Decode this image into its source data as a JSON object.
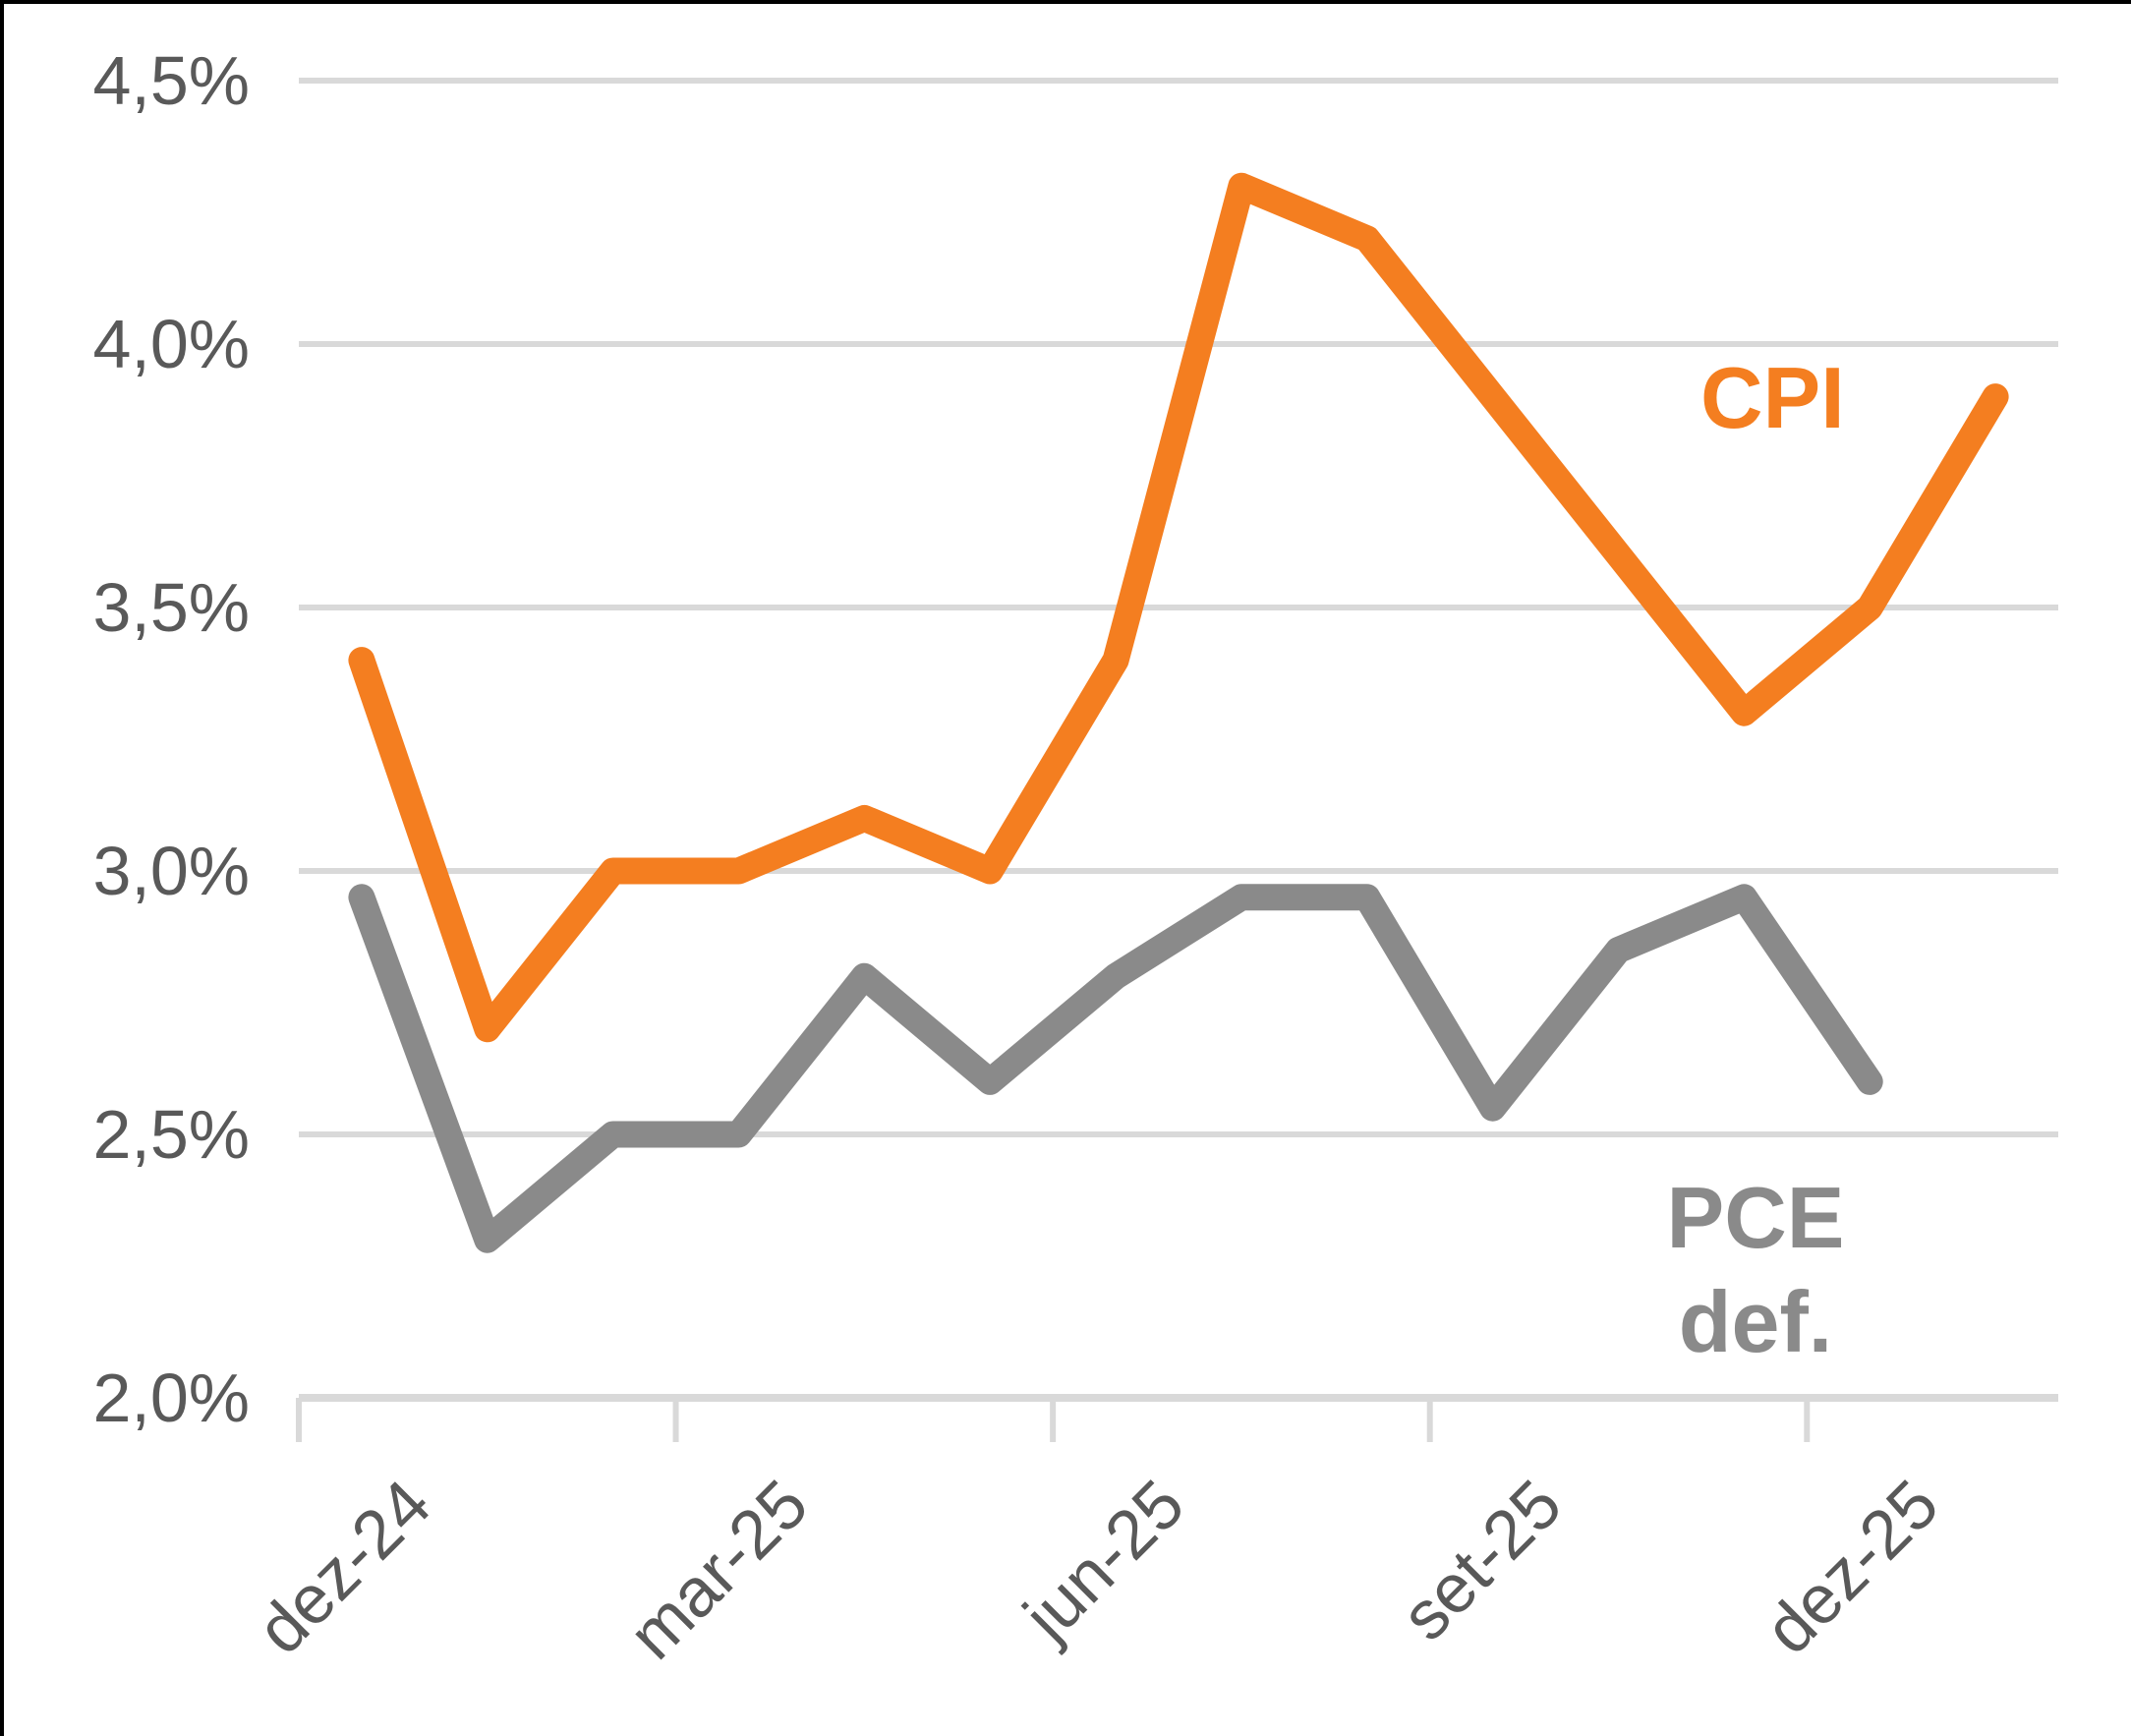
{
  "chart_data": {
    "type": "line",
    "title": "",
    "locale_note": "decimal comma (pt)",
    "categories": [
      "dez-24",
      "jan-25",
      "fev-25",
      "mar-25",
      "abr-25",
      "mai-25",
      "jun-25",
      "jul-25",
      "ago-25",
      "set-25",
      "out-25",
      "nov-25",
      "dez-25",
      "jan-26"
    ],
    "series": [
      {
        "name": "CPI",
        "color": "#F47E20",
        "values": [
          3.4,
          2.7,
          3.0,
          3.0,
          3.1,
          3.0,
          3.4,
          4.3,
          4.2,
          3.9,
          3.6,
          3.3,
          3.5,
          3.9
        ]
      },
      {
        "name": "PCE def.",
        "color": "#8A8A8A",
        "values": [
          2.95,
          2.3,
          2.5,
          2.5,
          2.8,
          2.6,
          2.8,
          2.95,
          2.95,
          2.55,
          2.85,
          2.95,
          2.6,
          null
        ]
      }
    ],
    "y_axis": {
      "min": 2.0,
      "max": 4.5,
      "step": 0.5,
      "tick_values": [
        4.5,
        4.0,
        3.5,
        3.0,
        2.5,
        2.0
      ],
      "tick_labels": [
        "4,5%",
        "4,0%",
        "3,5%",
        "3,0%",
        "2,5%",
        "2,0%"
      ],
      "grid": true
    },
    "x_axis": {
      "tick_label_indexes": [
        0,
        3,
        6,
        9,
        12
      ],
      "tick_labels": [
        "dez-24",
        "mar-25",
        "jun-25",
        "set-25",
        "dez-25"
      ],
      "label_rotation_deg": -45
    },
    "legend": {
      "position": "inline-annotations",
      "cpi_annotation": "CPI",
      "pce_annotation": "PCE def."
    },
    "style": {
      "background": "#FFFFFF",
      "grid_color": "#D9D9D9",
      "axis_color": "#D9D9D9",
      "text_color": "#595959",
      "cpi_color": "#F47E20",
      "pce_color": "#8A8A8A",
      "line_width": 27
    }
  }
}
